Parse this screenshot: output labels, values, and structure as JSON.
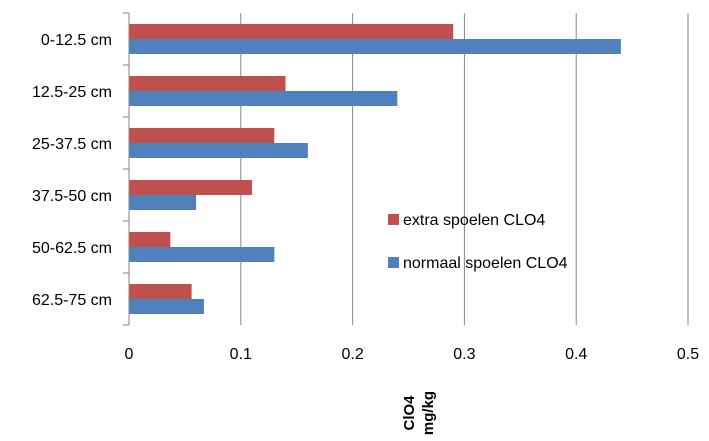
{
  "chart_data": {
    "type": "bar",
    "orientation": "horizontal",
    "categories": [
      "0-12.5 cm",
      "12.5-25 cm",
      "25-37.5 cm",
      "37.5-50 cm",
      "50-62.5 cm",
      "62.5-75 cm"
    ],
    "series": [
      {
        "name": "extra spoelen CLO4",
        "color": "#C0504D",
        "values": [
          0.29,
          0.14,
          0.13,
          0.11,
          0.037,
          0.056
        ]
      },
      {
        "name": "normaal spoelen CLO4",
        "color": "#4F81BD",
        "values": [
          0.44,
          0.24,
          0.16,
          0.06,
          0.13,
          0.067
        ]
      }
    ],
    "xlim": [
      0,
      0.5
    ],
    "xticks": [
      "0",
      "0.1",
      "0.2",
      "0.3",
      "0.4",
      "0.5"
    ],
    "xlabel_line1": "ClO4",
    "xlabel_line2": "mg/kg",
    "grid": "vertical",
    "legend_position": "right"
  }
}
